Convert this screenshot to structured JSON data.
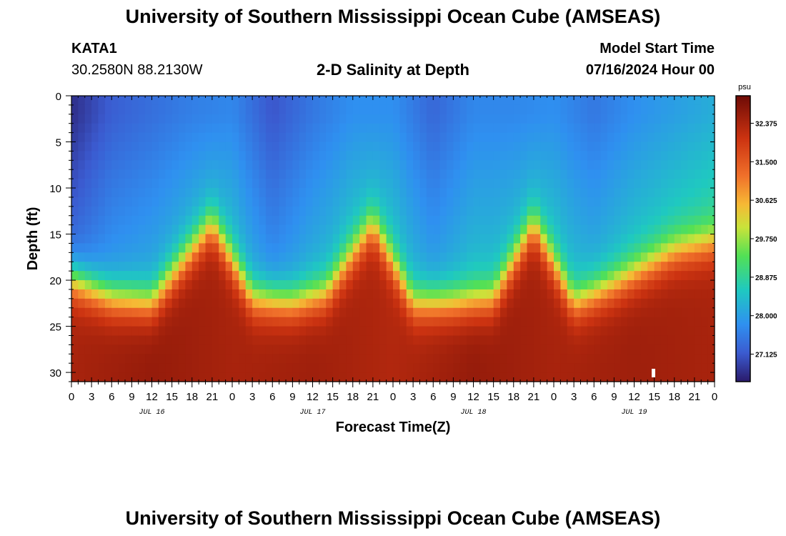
{
  "header": {
    "title": "University of Southern Mississippi Ocean Cube (AMSEAS)",
    "station": "KATA1",
    "coords": "30.2580N  88.2130W",
    "subtitle": "2-D Salinity at Depth",
    "start_label": "Model Start Time",
    "start_value": "07/16/2024 Hour 00"
  },
  "footer": {
    "title": "University of Southern Mississippi Ocean Cube (AMSEAS)"
  },
  "chart_data": {
    "type": "heatmap",
    "title": "2-D Salinity at Depth",
    "xlabel": "Forecast Time(Z)",
    "ylabel": "Depth (ft)",
    "colorbar_unit": "psu",
    "x_range_hours": [
      0,
      96
    ],
    "y_range_ft": [
      0,
      31
    ],
    "x_tick_labels": [
      "0",
      "3",
      "6",
      "9",
      "12",
      "15",
      "18",
      "21",
      "0",
      "3",
      "6",
      "9",
      "12",
      "15",
      "18",
      "21",
      "0",
      "3",
      "6",
      "9",
      "12",
      "15",
      "18",
      "21",
      "0",
      "3",
      "6",
      "9",
      "12",
      "15",
      "18",
      "21",
      "0"
    ],
    "x_tick_hours": [
      0,
      3,
      6,
      9,
      12,
      15,
      18,
      21,
      24,
      27,
      30,
      33,
      36,
      39,
      42,
      45,
      48,
      51,
      54,
      57,
      60,
      63,
      66,
      69,
      72,
      75,
      78,
      81,
      84,
      87,
      90,
      93,
      96
    ],
    "date_labels": [
      {
        "label": "JUL 16",
        "hour": 12
      },
      {
        "label": "JUL 17",
        "hour": 36
      },
      {
        "label": "JUL 18",
        "hour": 60
      },
      {
        "label": "JUL 19",
        "hour": 84
      }
    ],
    "y_ticks": [
      0,
      5,
      10,
      15,
      20,
      25,
      30
    ],
    "colorbar": {
      "range": [
        26.5,
        33.0
      ],
      "ticks": [
        27.125,
        28.0,
        28.875,
        29.75,
        30.625,
        31.5,
        32.375
      ],
      "tick_labels": [
        "27.125",
        "28.000",
        "28.875",
        "29.750",
        "30.625",
        "31.500",
        "32.375"
      ]
    },
    "halocline": {
      "description": "depth (ft) of the sharp salinity transition at each forecast hour",
      "hours": [
        0,
        6,
        12,
        21,
        27,
        33,
        38,
        45,
        51,
        57,
        63,
        69,
        75,
        81,
        90,
        96
      ],
      "depth_ft": [
        20,
        22,
        22.5,
        14,
        22,
        22.5,
        21.5,
        14,
        22.5,
        22.5,
        22,
        14,
        22.5,
        20.5,
        17,
        16
      ]
    },
    "surface_salinity_psu": {
      "hours": [
        0,
        6,
        12,
        18,
        24,
        30,
        36,
        42,
        48,
        54,
        60,
        66,
        72,
        78,
        84,
        90,
        96
      ],
      "values": [
        26.7,
        27.2,
        27.4,
        27.6,
        27.7,
        27.1,
        27.5,
        27.8,
        27.8,
        27.3,
        27.7,
        27.7,
        27.8,
        27.5,
        27.8,
        28.0,
        28.2
      ]
    },
    "bottom_salinity_psu": {
      "hours": [
        0,
        12,
        24,
        36,
        48,
        60,
        72,
        84,
        96
      ],
      "values": [
        32.4,
        32.6,
        32.4,
        32.5,
        32.3,
        32.6,
        32.4,
        32.5,
        32.4
      ]
    }
  }
}
